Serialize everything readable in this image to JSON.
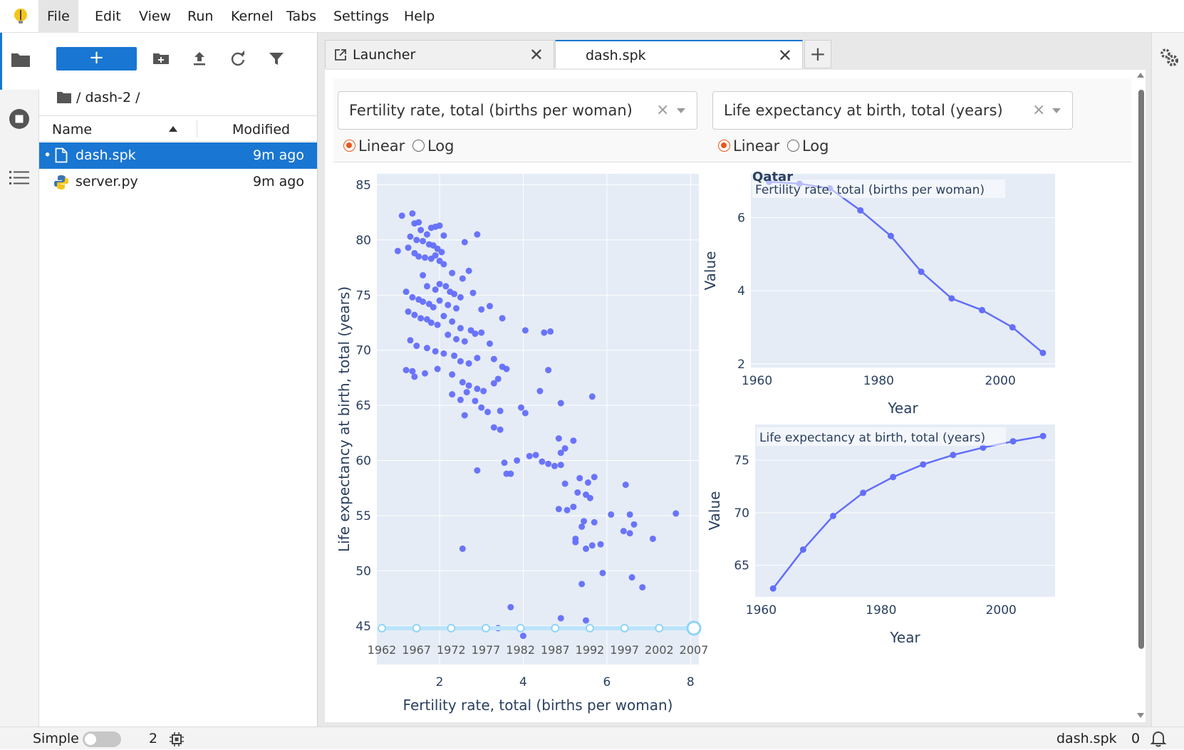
{
  "menu": {
    "items": [
      "File",
      "Edit",
      "View",
      "Run",
      "Kernel",
      "Tabs",
      "Settings",
      "Help"
    ]
  },
  "filebrowser": {
    "new_label": "+",
    "breadcrumb": "/ dash-2 /",
    "col_name": "Name",
    "col_modified": "Modified",
    "files": [
      {
        "name": "dash.spk",
        "modified": "9m ago",
        "icon": "file-icon",
        "selected": true
      },
      {
        "name": "server.py",
        "modified": "9m ago",
        "icon": "python-icon",
        "selected": false
      }
    ]
  },
  "tabs": [
    {
      "label": "Launcher",
      "icon": "launcher-icon"
    },
    {
      "label": "dash.spk",
      "icon": ""
    }
  ],
  "controls": {
    "xaxis_column": "Fertility rate, total (births per woman)",
    "yaxis_column": "Life expectancy at birth, total (years)",
    "linear_label": "Linear",
    "log_label": "Log",
    "x_type": "Linear",
    "y_type": "Linear",
    "clear_symbol": "×"
  },
  "statusbar": {
    "mode": "Simple",
    "kernels": "2",
    "doc": "dash.spk",
    "notifications": "0"
  },
  "colors": {
    "accent": "#1976d2",
    "marker": "#636efa",
    "plot_bg": "#e5ecf6",
    "slider": "#bce4fa",
    "radio_on": "#e8581c"
  },
  "chart_data": [
    {
      "type": "scatter",
      "title": "",
      "xlabel": "Fertility rate, total (births per woman)",
      "ylabel": "Life expectancy at birth, total (years)",
      "xlim": [
        0.5,
        8.2
      ],
      "ylim": [
        41.5,
        86
      ],
      "xticks": [
        2,
        4,
        6,
        8
      ],
      "yticks": [
        45,
        50,
        55,
        60,
        65,
        70,
        75,
        80,
        85
      ],
      "points": [
        [
          1.1,
          82.2
        ],
        [
          1.35,
          82.4
        ],
        [
          1.0,
          79.0
        ],
        [
          1.4,
          81.5
        ],
        [
          1.5,
          81.6
        ],
        [
          1.55,
          80.9
        ],
        [
          1.7,
          80.5
        ],
        [
          1.8,
          81.1
        ],
        [
          1.9,
          81.2
        ],
        [
          2.0,
          81.3
        ],
        [
          2.1,
          80.4
        ],
        [
          1.3,
          80.3
        ],
        [
          1.45,
          80.0
        ],
        [
          1.6,
          79.9
        ],
        [
          1.75,
          79.6
        ],
        [
          1.85,
          79.5
        ],
        [
          1.95,
          79.2
        ],
        [
          2.05,
          78.9
        ],
        [
          1.25,
          79.3
        ],
        [
          1.4,
          78.8
        ],
        [
          1.5,
          78.5
        ],
        [
          1.65,
          78.4
        ],
        [
          1.8,
          78.3
        ],
        [
          1.9,
          78.6
        ],
        [
          2.0,
          78.1
        ],
        [
          2.1,
          77.8
        ],
        [
          2.6,
          79.8
        ],
        [
          2.9,
          80.5
        ],
        [
          2.3,
          77.0
        ],
        [
          2.55,
          76.5
        ],
        [
          2.7,
          77.2
        ],
        [
          1.6,
          76.8
        ],
        [
          1.7,
          75.8
        ],
        [
          1.9,
          75.5
        ],
        [
          2.0,
          76.0
        ],
        [
          2.15,
          75.8
        ],
        [
          2.25,
          75.3
        ],
        [
          2.35,
          75.1
        ],
        [
          2.5,
          74.8
        ],
        [
          2.8,
          75.2
        ],
        [
          1.2,
          75.3
        ],
        [
          1.35,
          74.8
        ],
        [
          1.5,
          74.6
        ],
        [
          1.6,
          74.4
        ],
        [
          1.75,
          74.2
        ],
        [
          1.85,
          73.9
        ],
        [
          2.0,
          74.5
        ],
        [
          2.2,
          74.1
        ],
        [
          2.4,
          73.8
        ],
        [
          3.0,
          73.7
        ],
        [
          3.2,
          74.0
        ],
        [
          1.25,
          73.5
        ],
        [
          1.4,
          73.2
        ],
        [
          1.55,
          72.9
        ],
        [
          1.7,
          72.8
        ],
        [
          1.8,
          72.5
        ],
        [
          1.95,
          72.3
        ],
        [
          2.1,
          73.1
        ],
        [
          2.3,
          72.6
        ],
        [
          2.5,
          72.0
        ],
        [
          2.75,
          71.8
        ],
        [
          3.5,
          72.9
        ],
        [
          2.2,
          71.4
        ],
        [
          2.4,
          71.0
        ],
        [
          2.6,
          70.8
        ],
        [
          2.85,
          71.5
        ],
        [
          3.0,
          71.6
        ],
        [
          3.2,
          70.6
        ],
        [
          4.05,
          71.8
        ],
        [
          4.5,
          71.6
        ],
        [
          4.65,
          71.7
        ],
        [
          1.3,
          70.9
        ],
        [
          1.45,
          70.4
        ],
        [
          1.7,
          70.2
        ],
        [
          1.9,
          69.9
        ],
        [
          2.1,
          69.7
        ],
        [
          2.35,
          69.5
        ],
        [
          2.5,
          69.0
        ],
        [
          2.7,
          68.8
        ],
        [
          2.9,
          69.3
        ],
        [
          3.3,
          69.2
        ],
        [
          3.5,
          68.5
        ],
        [
          3.6,
          68.3
        ],
        [
          4.6,
          68.2
        ],
        [
          1.2,
          68.2
        ],
        [
          1.35,
          68.1
        ],
        [
          1.4,
          67.6
        ],
        [
          1.65,
          67.9
        ],
        [
          1.95,
          68.3
        ],
        [
          2.3,
          67.8
        ],
        [
          2.55,
          67.1
        ],
        [
          2.7,
          66.8
        ],
        [
          2.9,
          66.5
        ],
        [
          3.05,
          66.3
        ],
        [
          3.3,
          67.0
        ],
        [
          3.4,
          67.4
        ],
        [
          2.3,
          66.0
        ],
        [
          2.5,
          65.5
        ],
        [
          2.65,
          66.2
        ],
        [
          2.85,
          65.4
        ],
        [
          3.0,
          64.8
        ],
        [
          3.15,
          64.4
        ],
        [
          3.45,
          64.5
        ],
        [
          3.95,
          64.8
        ],
        [
          4.05,
          64.3
        ],
        [
          4.4,
          66.3
        ],
        [
          4.9,
          65.2
        ],
        [
          5.65,
          65.8
        ],
        [
          2.6,
          64.1
        ],
        [
          3.3,
          63.0
        ],
        [
          3.45,
          62.8
        ],
        [
          4.85,
          62.0
        ],
        [
          5.2,
          61.8
        ],
        [
          5.0,
          61.1
        ],
        [
          4.9,
          60.7
        ],
        [
          3.85,
          60.0
        ],
        [
          4.15,
          60.4
        ],
        [
          4.3,
          60.5
        ],
        [
          4.45,
          59.9
        ],
        [
          4.6,
          59.7
        ],
        [
          4.75,
          59.5
        ],
        [
          4.9,
          59.6
        ],
        [
          3.55,
          59.8
        ],
        [
          3.6,
          58.8
        ],
        [
          3.7,
          58.8
        ],
        [
          2.9,
          59.1
        ],
        [
          5.0,
          57.9
        ],
        [
          5.35,
          58.4
        ],
        [
          5.55,
          58.0
        ],
        [
          5.7,
          58.5
        ],
        [
          6.45,
          57.8
        ],
        [
          5.3,
          57.1
        ],
        [
          5.5,
          56.9
        ],
        [
          5.6,
          56.6
        ],
        [
          4.85,
          55.6
        ],
        [
          5.05,
          55.5
        ],
        [
          5.2,
          55.8
        ],
        [
          5.45,
          54.5
        ],
        [
          5.7,
          54.4
        ],
        [
          6.1,
          55.1
        ],
        [
          6.55,
          55.1
        ],
        [
          6.65,
          54.2
        ],
        [
          7.65,
          55.2
        ],
        [
          5.4,
          54.0
        ],
        [
          6.4,
          53.6
        ],
        [
          6.55,
          53.4
        ],
        [
          5.25,
          52.9
        ],
        [
          5.5,
          52.0
        ],
        [
          5.65,
          52.3
        ],
        [
          5.85,
          52.4
        ],
        [
          7.1,
          52.9
        ],
        [
          5.25,
          52.6
        ],
        [
          2.55,
          52.0
        ],
        [
          5.9,
          49.8
        ],
        [
          5.4,
          48.8
        ],
        [
          6.6,
          49.4
        ],
        [
          6.85,
          48.5
        ],
        [
          3.7,
          46.7
        ],
        [
          4.9,
          45.7
        ],
        [
          5.5,
          45.5
        ],
        [
          3.4,
          44.8
        ],
        [
          4.0,
          44.1
        ]
      ]
    },
    {
      "type": "line",
      "title": "Qatar",
      "annotation": "Fertility rate, total (births per woman)",
      "xlabel": "Year",
      "ylabel": "Value",
      "xlim": [
        1959,
        2009
      ],
      "ylim": [
        1.9,
        7.2
      ],
      "xticks": [
        1960,
        1980,
        2000
      ],
      "yticks": [
        2,
        4,
        6
      ],
      "x": [
        1962,
        1967,
        1972,
        1977,
        1982,
        1987,
        1992,
        1997,
        2002,
        2007
      ],
      "values": [
        6.98,
        6.93,
        6.8,
        6.2,
        5.5,
        4.52,
        3.79,
        3.47,
        3.0,
        2.3
      ]
    },
    {
      "type": "line",
      "title": "",
      "annotation": "Life expectancy at birth, total (years)",
      "xlabel": "Year",
      "ylabel": "Value",
      "xlim": [
        1959,
        2009
      ],
      "ylim": [
        62.0,
        78.4
      ],
      "xticks": [
        1960,
        1980,
        2000
      ],
      "yticks": [
        65,
        70,
        75
      ],
      "x": [
        1962,
        1967,
        1972,
        1977,
        1982,
        1987,
        1992,
        1997,
        2002,
        2007
      ],
      "values": [
        62.8,
        66.5,
        69.7,
        71.9,
        73.4,
        74.6,
        75.5,
        76.2,
        76.8,
        77.3
      ]
    }
  ],
  "year_slider": {
    "marks": [
      "1962",
      "1967",
      "1972",
      "1977",
      "1982",
      "1987",
      "1992",
      "1997",
      "2002",
      "2007"
    ],
    "selected_index": 9
  }
}
